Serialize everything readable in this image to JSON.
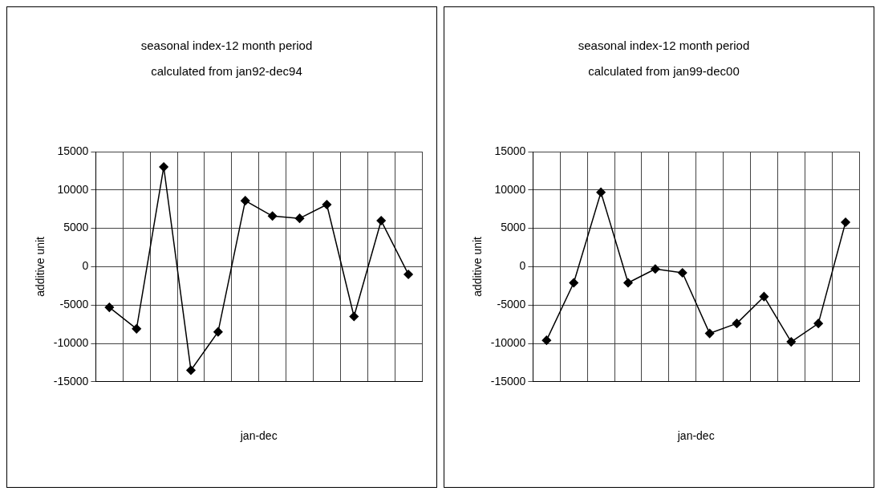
{
  "chart_data": [
    {
      "type": "line",
      "title": "seasonal index-12 month period",
      "subtitle": "calculated from jan92-dec94",
      "xlabel": "jan-dec",
      "ylabel": "additive unit",
      "categories": [
        null,
        null,
        null,
        null,
        null,
        null,
        null,
        null,
        null,
        null,
        null,
        null
      ],
      "series": [
        {
          "color": "#000000",
          "values": [
            -5300,
            -8100,
            13000,
            -13500,
            -8500,
            8600,
            6600,
            6300,
            8100,
            -6500,
            6000,
            -1000
          ]
        }
      ],
      "ylim": [
        -15000,
        15000
      ],
      "yticks": [
        -15000,
        -10000,
        -5000,
        0,
        5000,
        10000,
        15000
      ],
      "grid": true,
      "legend": false,
      "marker": "diamond",
      "line_style": "solid"
    },
    {
      "type": "line",
      "title": "seasonal index-12 month period",
      "subtitle": "calculated from jan99-dec00",
      "xlabel": "jan-dec",
      "ylabel": "additive unit",
      "categories": [
        null,
        null,
        null,
        null,
        null,
        null,
        null,
        null,
        null,
        null,
        null,
        null
      ],
      "series": [
        {
          "color": "#000000",
          "values": [
            -9600,
            -2100,
            9700,
            -2100,
            -300,
            -800,
            -8700,
            -7400,
            -3900,
            -9800,
            -7400,
            5800
          ]
        }
      ],
      "ylim": [
        -15000,
        15000
      ],
      "yticks": [
        -15000,
        -10000,
        -5000,
        0,
        5000,
        10000,
        15000
      ],
      "grid": true,
      "legend": false,
      "marker": "diamond",
      "line_style": "solid"
    }
  ]
}
